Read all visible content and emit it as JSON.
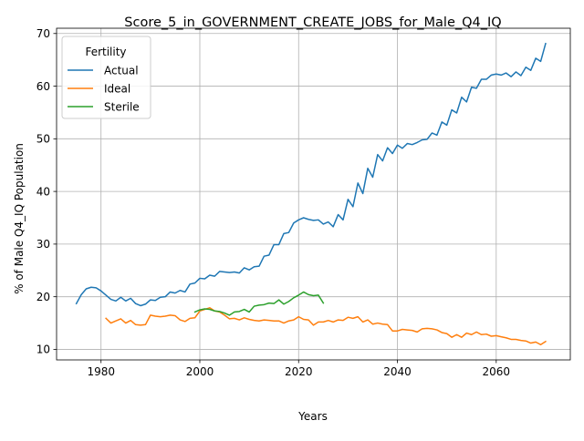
{
  "chart_data": {
    "type": "line",
    "title": "Score_5_in_GOVERNMENT_CREATE_JOBS_for_Male_Q4_IQ",
    "xlabel": "Years",
    "ylabel": "% of Male Q4_IQ Population",
    "xlim": [
      1971,
      2075
    ],
    "ylim": [
      8,
      71
    ],
    "xticks": [
      1980,
      2000,
      2020,
      2040,
      2060
    ],
    "yticks": [
      10,
      20,
      30,
      40,
      50,
      60,
      70
    ],
    "grid": true,
    "legend": {
      "title": "Fertility",
      "placement": "top-left"
    },
    "series": [
      {
        "name": "Actual",
        "color": "#1f77b4",
        "x": [
          1975,
          1976,
          1977,
          1978,
          1979,
          1980,
          1981,
          1982,
          1983,
          1984,
          1985,
          1986,
          1987,
          1988,
          1989,
          1990,
          1991,
          1992,
          1993,
          1994,
          1995,
          1996,
          1997,
          1998,
          1999,
          2000,
          2001,
          2002,
          2003,
          2004,
          2005,
          2006,
          2007,
          2008,
          2009,
          2010,
          2011,
          2012,
          2013,
          2014,
          2015,
          2016,
          2017,
          2018,
          2019,
          2020,
          2021,
          2022,
          2023,
          2024,
          2025,
          2026,
          2027,
          2028,
          2029,
          2030,
          2031,
          2032,
          2033,
          2034,
          2035,
          2036,
          2037,
          2038,
          2039,
          2040,
          2041,
          2042,
          2043,
          2044,
          2045,
          2046,
          2047,
          2048,
          2049,
          2050,
          2051,
          2052,
          2053,
          2054,
          2055,
          2056,
          2057,
          2058,
          2059,
          2060,
          2061,
          2062,
          2063,
          2064,
          2065,
          2066,
          2067,
          2068,
          2069,
          2070
        ],
        "values": [
          18.7,
          20.4,
          21.5,
          21.8,
          21.7,
          21.1,
          20.3,
          19.5,
          19.2,
          19.9,
          19.2,
          19.7,
          18.7,
          18.3,
          18.6,
          19.4,
          19.3,
          19.9,
          20.0,
          20.9,
          20.7,
          21.2,
          20.9,
          22.4,
          22.6,
          23.5,
          23.4,
          24.1,
          23.9,
          24.8,
          24.7,
          24.6,
          24.7,
          24.5,
          25.5,
          25.1,
          25.7,
          25.8,
          27.7,
          27.9,
          29.9,
          29.9,
          32.0,
          32.2,
          34.0,
          34.6,
          35.0,
          34.7,
          34.5,
          34.6,
          33.8,
          34.2,
          33.3,
          35.6,
          34.6,
          38.5,
          37.1,
          41.6,
          39.6,
          44.4,
          42.7,
          47.0,
          45.8,
          48.3,
          47.2,
          48.8,
          48.2,
          49.1,
          48.9,
          49.3,
          49.8,
          49.9,
          51.1,
          50.7,
          53.2,
          52.6,
          55.5,
          54.9,
          57.9,
          57.0,
          59.8,
          59.6,
          61.3,
          61.3,
          62.1,
          62.3,
          62.1,
          62.5,
          61.8,
          62.7,
          62.0,
          63.6,
          63.0,
          65.3,
          64.7,
          68.1
        ]
      },
      {
        "name": "Ideal",
        "color": "#ff7f0e",
        "x": [
          1981,
          1982,
          1983,
          1984,
          1985,
          1986,
          1987,
          1988,
          1989,
          1990,
          1991,
          1992,
          1993,
          1994,
          1995,
          1996,
          1997,
          1998,
          1999,
          2000,
          2001,
          2002,
          2003,
          2004,
          2005,
          2006,
          2007,
          2008,
          2009,
          2010,
          2011,
          2012,
          2013,
          2014,
          2015,
          2016,
          2017,
          2018,
          2019,
          2020,
          2021,
          2022,
          2023,
          2024,
          2025,
          2026,
          2027,
          2028,
          2029,
          2030,
          2031,
          2032,
          2033,
          2034,
          2035,
          2036,
          2037,
          2038,
          2039,
          2040,
          2041,
          2042,
          2043,
          2044,
          2045,
          2046,
          2047,
          2048,
          2049,
          2050,
          2051,
          2052,
          2053,
          2054,
          2055,
          2056,
          2057,
          2058,
          2059,
          2060,
          2061,
          2062,
          2063,
          2064,
          2065,
          2066,
          2067,
          2068,
          2069,
          2070
        ],
        "values": [
          15.9,
          15.0,
          15.4,
          15.8,
          15.0,
          15.5,
          14.7,
          14.6,
          14.7,
          16.5,
          16.3,
          16.2,
          16.3,
          16.5,
          16.4,
          15.6,
          15.3,
          15.9,
          16.0,
          17.3,
          17.6,
          17.9,
          17.3,
          17.1,
          16.5,
          15.8,
          15.9,
          15.6,
          16.0,
          15.7,
          15.5,
          15.4,
          15.6,
          15.5,
          15.4,
          15.4,
          15.0,
          15.4,
          15.6,
          16.2,
          15.7,
          15.6,
          14.6,
          15.2,
          15.2,
          15.5,
          15.2,
          15.6,
          15.5,
          16.1,
          15.9,
          16.2,
          15.2,
          15.6,
          14.8,
          15.0,
          14.8,
          14.7,
          13.5,
          13.5,
          13.8,
          13.7,
          13.6,
          13.3,
          13.9,
          14.0,
          13.9,
          13.7,
          13.2,
          13.0,
          12.3,
          12.8,
          12.3,
          13.1,
          12.8,
          13.3,
          12.8,
          12.9,
          12.5,
          12.6,
          12.4,
          12.2,
          11.9,
          11.9,
          11.7,
          11.6,
          11.2,
          11.4,
          10.9,
          11.5
        ]
      },
      {
        "name": "Sterile",
        "color": "#2ca02c",
        "x": [
          1999,
          2000,
          2001,
          2002,
          2003,
          2004,
          2005,
          2006,
          2007,
          2008,
          2009,
          2010,
          2011,
          2012,
          2013,
          2014,
          2015,
          2016,
          2017,
          2018,
          2019,
          2020,
          2021,
          2022,
          2023,
          2024,
          2025
        ],
        "values": [
          17.1,
          17.5,
          17.7,
          17.6,
          17.3,
          17.2,
          16.9,
          16.5,
          17.1,
          17.2,
          17.6,
          17.1,
          18.2,
          18.4,
          18.5,
          18.8,
          18.7,
          19.4,
          18.6,
          19.1,
          19.8,
          20.3,
          20.9,
          20.4,
          20.2,
          20.3,
          18.8
        ]
      }
    ]
  }
}
